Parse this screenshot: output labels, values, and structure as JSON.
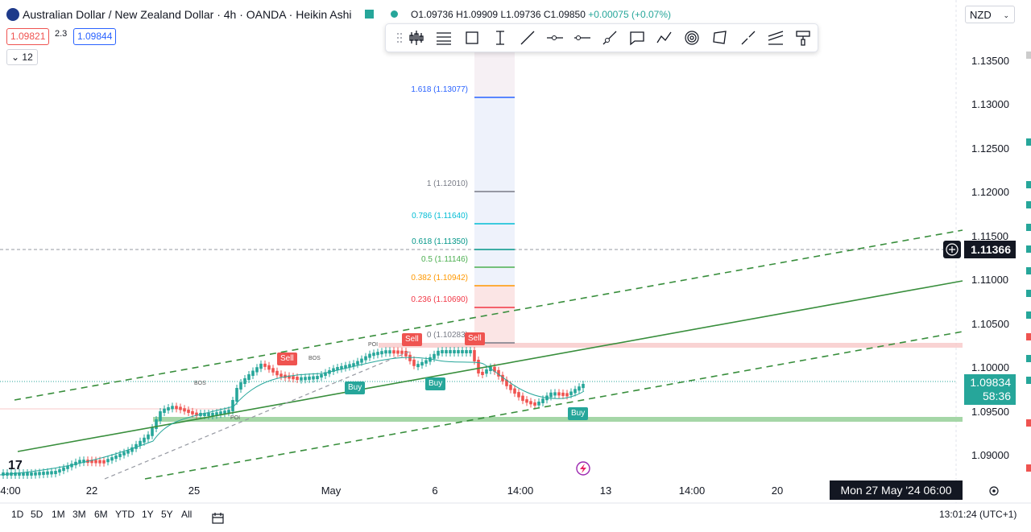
{
  "header": {
    "symbol_title": "Australian Dollar / New Zealand Dollar · 4h · OANDA · Heikin Ashi",
    "open": "O1.09736",
    "high": "H1.09909",
    "low": "L1.09736",
    "close": "C1.09850",
    "change": "+0.00075 (+0.07%)",
    "bid": "1.09821",
    "spread": "2.3",
    "ask": "1.09844",
    "lots": "12"
  },
  "toolbar": {
    "icons": [
      "fork-icon",
      "horizontal-lines-icon",
      "rectangle-icon",
      "text-cursor-icon",
      "trend-line-icon",
      "horizontal-ray-icon",
      "horizontal-line-icon",
      "ray-icon",
      "callout-icon",
      "path-icon",
      "fib-circle-icon",
      "polygon-icon",
      "brush-icon",
      "fib-channel-icon",
      "paint-roller-icon"
    ]
  },
  "currency": "NZD",
  "price_axis": [
    "1.13500",
    "1.13000",
    "1.12500",
    "1.12000",
    "1.11500",
    "1.11000",
    "1.10500",
    "1.10000",
    "1.09500",
    "1.09000"
  ],
  "crosshair_price": "1.11366",
  "current_price": {
    "price": "1.09834",
    "countdown": "58:36"
  },
  "time_axis": [
    "4:00",
    "22",
    "25",
    "May",
    "6",
    "14:00",
    "13",
    "14:00",
    "20"
  ],
  "time_highlight": "Mon 27 May '24   06:00",
  "fib_levels": [
    {
      "label": "1.618 (1.13077)",
      "color": "#2962ff"
    },
    {
      "label": "1 (1.12010)",
      "color": "#787b86"
    },
    {
      "label": "0.786 (1.11640)",
      "color": "#00bcd4"
    },
    {
      "label": "0.618 (1.11350)",
      "color": "#009688"
    },
    {
      "label": "0.5 (1.11146)",
      "color": "#4caf50"
    },
    {
      "label": "0.382 (1.10942)",
      "color": "#ff9800"
    },
    {
      "label": "0.236 (1.10690)",
      "color": "#f23645"
    },
    {
      "label": "0 (1.10283)",
      "color": "#787b86"
    }
  ],
  "signals": {
    "sell1": "Sell",
    "sell2": "Sell",
    "sell3": "Sell",
    "buy1": "Buy",
    "buy2": "Buy",
    "buy3": "Buy"
  },
  "annotations": {
    "bos1": "BOS",
    "bos2": "BOS",
    "poi1": "POI",
    "poi2": "POI"
  },
  "bottom_bar": {
    "ranges": [
      "1D",
      "5D",
      "1M",
      "3M",
      "6M",
      "YTD",
      "1Y",
      "5Y",
      "All"
    ],
    "clock": "13:01:24 (UTC+1)"
  },
  "colors": {
    "up": "#26a69a",
    "down": "#ef5350",
    "channel": "#388e3c"
  }
}
